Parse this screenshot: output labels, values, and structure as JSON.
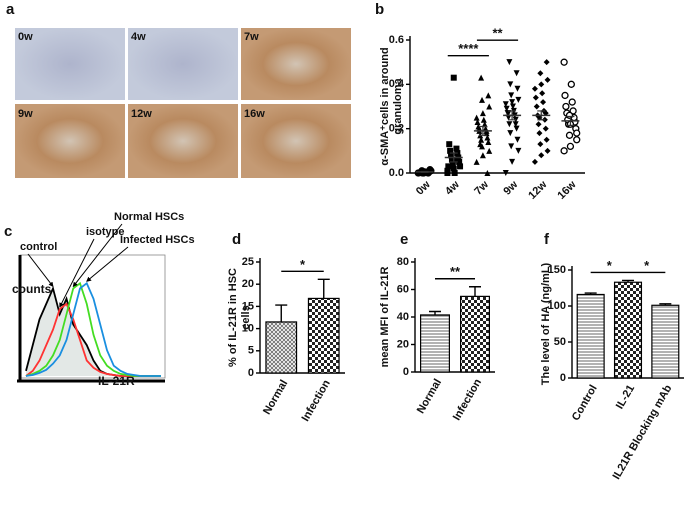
{
  "figure_a": {
    "panel": "a",
    "images": [
      "0w",
      "4w",
      "7w",
      "9w",
      "12w",
      "16w"
    ]
  },
  "chart_data": [
    {
      "panel": "b",
      "type": "strip",
      "ylabel": [
        "α-SMA⁺cells in around",
        "granuloma"
      ],
      "categories": [
        "0w",
        "4w",
        "7w",
        "9w",
        "12w",
        "16w"
      ],
      "markers": [
        "circle",
        "square",
        "triangle",
        "triangle-down",
        "diamond",
        "circle-open"
      ],
      "points": [
        [
          0.0,
          0.005,
          0.01,
          0.0,
          0.015,
          0.0,
          0.005,
          0.01,
          0.0,
          0.002
        ],
        [
          0.0,
          0.02,
          0.03,
          0.04,
          0.05,
          0.06,
          0.07,
          0.08,
          0.09,
          0.1,
          0.11,
          0.13,
          0.06,
          0.03,
          0.0,
          0.01,
          0.43
        ],
        [
          0.05,
          0.08,
          0.1,
          0.12,
          0.14,
          0.15,
          0.16,
          0.17,
          0.18,
          0.19,
          0.2,
          0.21,
          0.22,
          0.23,
          0.24,
          0.25,
          0.27,
          0.3,
          0.33,
          0.35,
          0.43,
          0.0,
          0.13,
          0.19,
          0.2
        ],
        [
          0.0,
          0.05,
          0.1,
          0.12,
          0.15,
          0.18,
          0.2,
          0.22,
          0.24,
          0.25,
          0.26,
          0.27,
          0.28,
          0.29,
          0.3,
          0.31,
          0.32,
          0.33,
          0.35,
          0.38,
          0.4,
          0.45,
          0.5,
          0.22,
          0.27
        ],
        [
          0.05,
          0.08,
          0.1,
          0.13,
          0.15,
          0.18,
          0.2,
          0.22,
          0.24,
          0.26,
          0.28,
          0.3,
          0.32,
          0.34,
          0.36,
          0.38,
          0.4,
          0.42,
          0.45,
          0.5,
          0.25,
          0.27
        ],
        [
          0.1,
          0.12,
          0.15,
          0.17,
          0.2,
          0.22,
          0.23,
          0.24,
          0.25,
          0.27,
          0.28,
          0.3,
          0.32,
          0.35,
          0.4,
          0.5,
          0.22,
          0.18,
          0.26
        ]
      ],
      "means": [
        0.005,
        0.07,
        0.19,
        0.26,
        0.26,
        0.235
      ],
      "errors": [
        0.002,
        0.02,
        0.02,
        0.02,
        0.02,
        0.02
      ],
      "ylim": [
        0,
        0.6
      ],
      "yticks": [
        {
          "value": 0,
          "label": "0.0"
        },
        {
          "value": 0.2,
          "label": "0.2"
        },
        {
          "value": 0.4,
          "label": "0.4"
        },
        {
          "value": 0.6,
          "label": "0.6"
        }
      ],
      "significance": [
        {
          "text": "****",
          "between": [
            "4w",
            "7w"
          ]
        },
        {
          "text": "**",
          "between": [
            "7w",
            "9w"
          ]
        }
      ]
    },
    {
      "panel": "c",
      "type": "flow-histogram",
      "xlabel": "IL-21R",
      "ylabel": "counts",
      "xlim": [
        0,
        20
      ],
      "ylim": [
        0,
        100
      ],
      "series": [
        {
          "name": "control",
          "color": "#000000",
          "fill": "#e3e8e6",
          "values": [
            5,
            30,
            55,
            70,
            85,
            60,
            75,
            50,
            40,
            30,
            15,
            5,
            2,
            1,
            0,
            0,
            0,
            0,
            0,
            0,
            0
          ]
        },
        {
          "name": "isotype",
          "color": "#ff3333",
          "values": [
            0,
            5,
            15,
            30,
            45,
            65,
            70,
            55,
            35,
            15,
            8,
            4,
            2,
            1,
            0,
            0,
            0,
            0,
            0,
            0,
            0
          ]
        },
        {
          "name": "Normal HSCs",
          "color": "#44dd22",
          "values": [
            0,
            2,
            5,
            10,
            20,
            35,
            60,
            85,
            90,
            70,
            40,
            20,
            10,
            5,
            2,
            1,
            0,
            0,
            0,
            0,
            0
          ]
        },
        {
          "name": "Infected HSCs",
          "color": "#1a8fe0",
          "values": [
            0,
            1,
            3,
            6,
            12,
            20,
            35,
            60,
            85,
            90,
            75,
            50,
            25,
            10,
            5,
            2,
            1,
            0,
            0,
            0,
            0
          ]
        }
      ]
    },
    {
      "panel": "d",
      "type": "bar",
      "ylabel": [
        "% of IL-21R in HSC",
        "cells"
      ],
      "categories": [
        "Normal",
        "Infection"
      ],
      "values": [
        11.5,
        16.8
      ],
      "errors": [
        3.8,
        4.3
      ],
      "patterns": [
        "crosshatch",
        "checker"
      ],
      "ylim": [
        0,
        25
      ],
      "yticks": [
        0,
        5,
        10,
        15,
        20,
        25
      ],
      "significance": [
        {
          "text": "*",
          "between": [
            "Normal",
            "Infection"
          ]
        }
      ]
    },
    {
      "panel": "e",
      "type": "bar",
      "ylabel": [
        "mean MFI of IL-21R"
      ],
      "categories": [
        "Normal",
        "Infection"
      ],
      "values": [
        41.5,
        55
      ],
      "errors": [
        2.5,
        7
      ],
      "patterns": [
        "lines",
        "checker"
      ],
      "ylim": [
        0,
        80
      ],
      "yticks": [
        0,
        20,
        40,
        60,
        80
      ],
      "significance": [
        {
          "text": "**",
          "between": [
            "Normal",
            "Infection"
          ]
        }
      ]
    },
    {
      "panel": "f",
      "type": "bar",
      "ylabel": [
        "The level of HA (ng/mL)"
      ],
      "categories": [
        "Control",
        "IL-21",
        "IL21R Blocking mAb"
      ],
      "values": [
        116,
        133,
        101
      ],
      "errors": [
        2,
        2.5,
        2
      ],
      "patterns": [
        "lines",
        "checker",
        "lines"
      ],
      "ylim": [
        0,
        150
      ],
      "yticks": [
        0,
        50,
        100,
        150
      ],
      "significance": [
        {
          "text": "*",
          "between": [
            "Control",
            "IL-21"
          ]
        },
        {
          "text": "*",
          "between": [
            "IL-21",
            "IL21R Blocking mAb"
          ]
        }
      ]
    }
  ]
}
